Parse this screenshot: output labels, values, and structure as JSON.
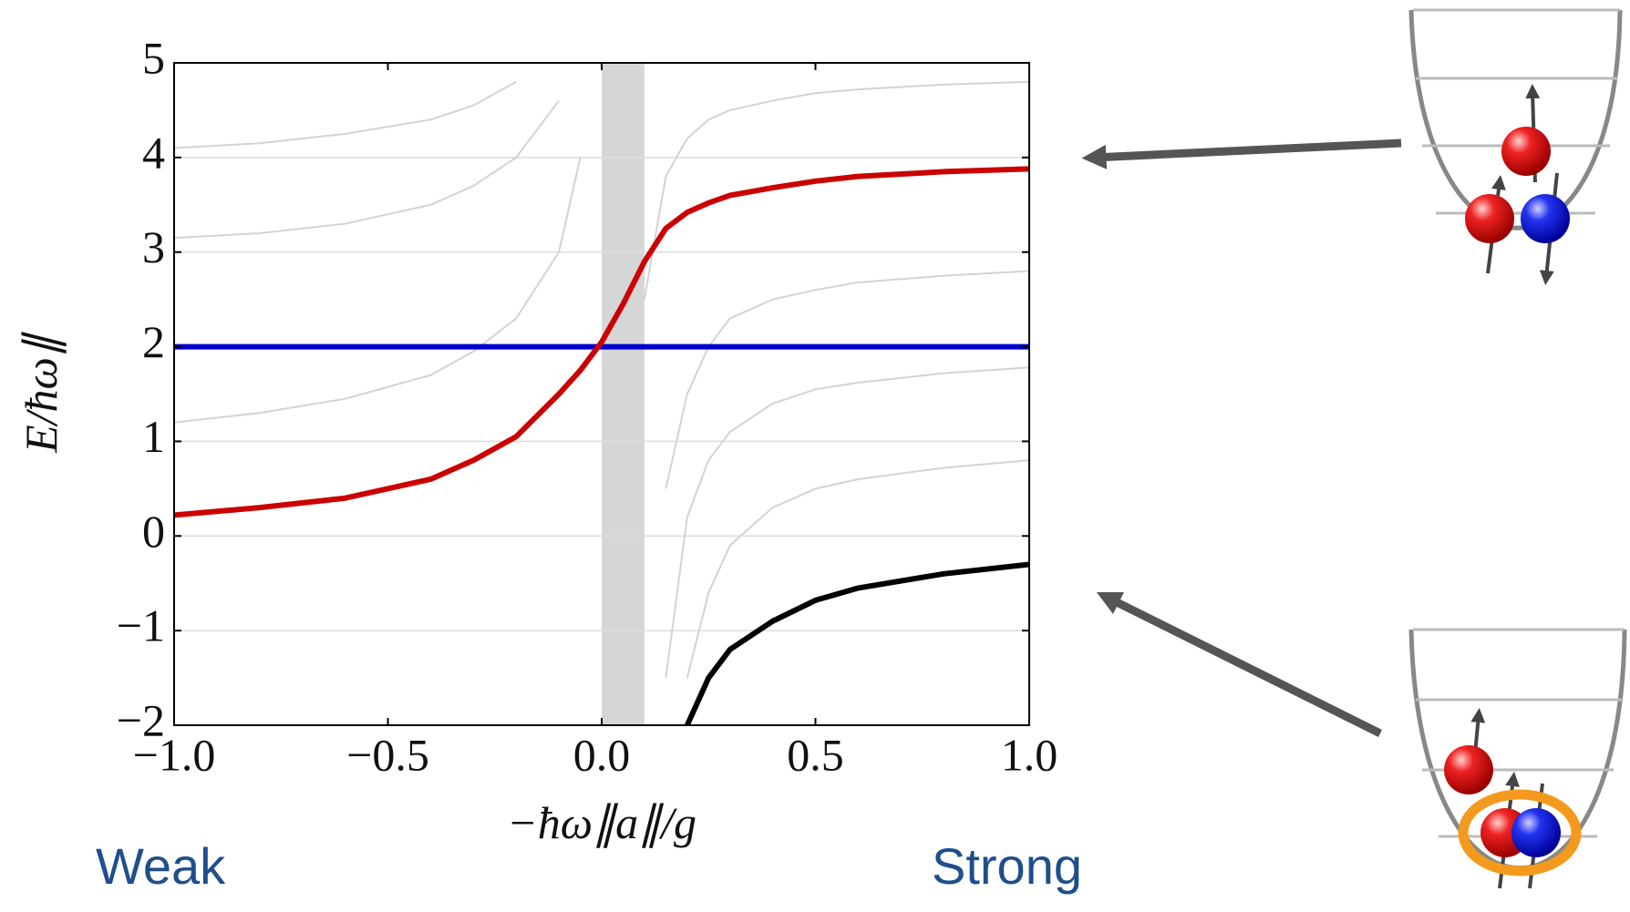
{
  "chart_data": {
    "type": "line",
    "xlabel": "−ħω∥a∥/g",
    "ylabel": "E/ħω∥",
    "annotations": [
      "Weak",
      "Strong"
    ],
    "x": [
      -1,
      -0.8,
      -0.6,
      -0.4,
      -0.3,
      -0.2,
      -0.1,
      -0.05,
      0,
      0.05,
      0.1,
      0.15,
      0.2,
      0.25,
      0.3,
      0.4,
      0.5,
      0.6,
      0.8,
      1.0
    ],
    "shaded_x": [
      0,
      0.1
    ],
    "shaded_color": "#d6d6d6",
    "series": [
      {
        "color": "#d3d3d3",
        "values": [
          1.2,
          1.3,
          1.45,
          1.7,
          1.95,
          2.3,
          3.0,
          4.0,
          null,
          null,
          null,
          null,
          null,
          null,
          null,
          null,
          null,
          null,
          null,
          null
        ]
      },
      {
        "color": "#d3d3d3",
        "values": [
          3.15,
          3.2,
          3.3,
          3.5,
          3.7,
          4.0,
          4.6,
          null,
          null,
          null,
          null,
          null,
          null,
          null,
          null,
          null,
          null,
          null,
          null,
          null
        ]
      },
      {
        "color": "#d3d3d3",
        "values": [
          4.1,
          4.15,
          4.25,
          4.4,
          4.55,
          4.8,
          null,
          null,
          null,
          null,
          null,
          null,
          null,
          null,
          null,
          null,
          null,
          null,
          null,
          null
        ]
      },
      {
        "color": "#d3d3d3",
        "values": [
          null,
          null,
          null,
          null,
          null,
          null,
          null,
          null,
          null,
          null,
          2.5,
          3.8,
          4.2,
          4.4,
          4.5,
          4.6,
          4.68,
          4.72,
          4.77,
          4.8
        ]
      },
      {
        "color": "#d3d3d3",
        "values": [
          null,
          null,
          null,
          null,
          null,
          null,
          null,
          null,
          null,
          null,
          null,
          0.5,
          1.5,
          2.0,
          2.3,
          2.5,
          2.6,
          2.68,
          2.75,
          2.8
        ]
      },
      {
        "color": "#d3d3d3",
        "values": [
          null,
          null,
          null,
          null,
          null,
          null,
          null,
          null,
          null,
          null,
          null,
          -1.5,
          0.2,
          0.8,
          1.1,
          1.4,
          1.55,
          1.62,
          1.72,
          1.78
        ]
      },
      {
        "color": "#d3d3d3",
        "values": [
          null,
          null,
          null,
          null,
          null,
          null,
          null,
          null,
          null,
          null,
          null,
          null,
          -1.5,
          -0.6,
          -0.1,
          0.3,
          0.5,
          0.6,
          0.72,
          0.8
        ]
      },
      {
        "color": "#0000cc",
        "values": [
          2,
          2,
          2,
          2,
          2,
          2,
          2,
          2,
          2,
          2,
          2,
          2,
          2,
          2,
          2,
          2,
          2,
          2,
          2,
          2
        ]
      },
      {
        "color": "#cc0000",
        "values": [
          0.22,
          0.3,
          0.4,
          0.6,
          0.8,
          1.05,
          1.5,
          1.75,
          2.05,
          2.45,
          2.9,
          3.25,
          3.42,
          3.52,
          3.6,
          3.68,
          3.75,
          3.8,
          3.85,
          3.88
        ]
      },
      {
        "color": "#000000",
        "values": [
          null,
          null,
          null,
          null,
          null,
          null,
          null,
          null,
          null,
          null,
          null,
          null,
          -2,
          -1.5,
          -1.2,
          -0.9,
          -0.68,
          -0.55,
          -0.4,
          -0.3
        ]
      }
    ],
    "xlim": [
      -1,
      1
    ],
    "ylim": [
      -2,
      5
    ],
    "xticks": [
      {
        "value": -1,
        "label": "−1.0"
      },
      {
        "value": -0.5,
        "label": "−0.5"
      },
      {
        "value": 0,
        "label": "0.0"
      },
      {
        "value": 0.5,
        "label": "0.5"
      },
      {
        "value": 1,
        "label": "1.0"
      }
    ],
    "yticks": [
      {
        "value": -2,
        "label": "−2"
      },
      {
        "value": -1,
        "label": "−1"
      },
      0,
      1,
      2,
      3,
      4,
      5
    ],
    "grid": true
  }
}
